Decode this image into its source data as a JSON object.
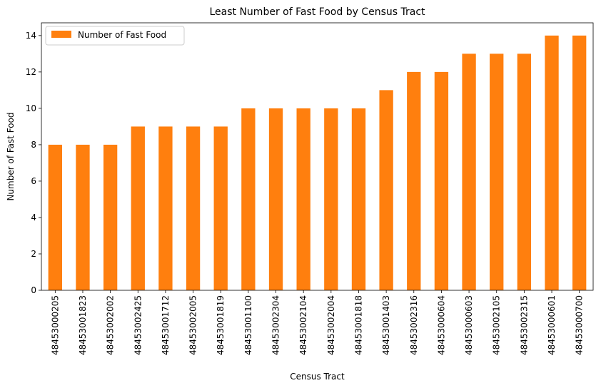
{
  "chart_data": {
    "type": "bar",
    "title": "Least Number of Fast Food by Census Tract",
    "xlabel": "Census Tract",
    "ylabel": "Number of Fast Food",
    "ylim": [
      0,
      14.7
    ],
    "yticks": [
      0,
      2,
      4,
      6,
      8,
      10,
      12,
      14
    ],
    "grid": false,
    "legend_position": "top-left",
    "categories": [
      "48453000205",
      "48453001823",
      "48453002002",
      "48453002425",
      "48453001712",
      "48453002005",
      "48453001819",
      "48453001100",
      "48453002304",
      "48453002104",
      "48453002004",
      "48453001818",
      "48453001403",
      "48453002316",
      "48453000604",
      "48453000603",
      "48453002105",
      "48453002315",
      "48453000601",
      "48453000700"
    ],
    "series": [
      {
        "name": "Number of Fast Food",
        "color": "#ff7f0e",
        "values": [
          8,
          8,
          8,
          9,
          9,
          9,
          9,
          10,
          10,
          10,
          10,
          10,
          11,
          12,
          12,
          13,
          13,
          13,
          14,
          14
        ]
      }
    ]
  }
}
